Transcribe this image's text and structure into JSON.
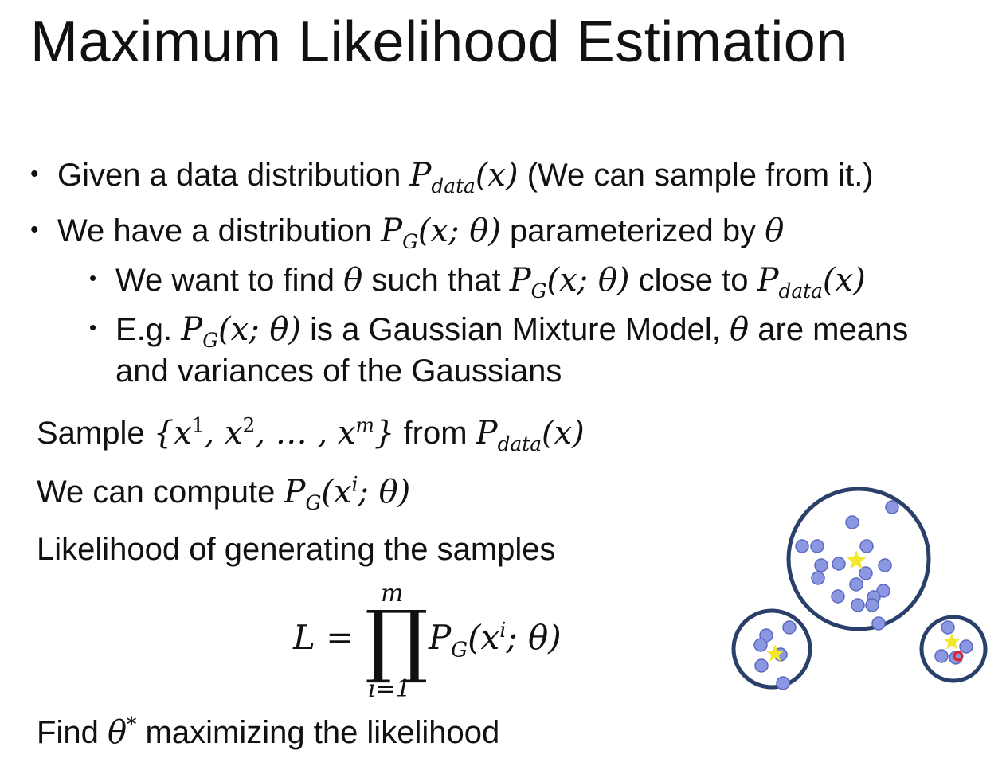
{
  "title": "Maximum Likelihood Estimation",
  "bullets": {
    "b1_text": "Given a data distribution ",
    "b1_pdata": "P",
    "b1_sub": "data",
    "b1_arg": "(x)",
    "b1_note": " (We can sample from it.)",
    "b2_text": "We have a distribution ",
    "b2_pg": "P",
    "b2_sub": "G",
    "b2_arg": "(x; θ)",
    "b2_tail": " parameterized by ",
    "b2_theta": "θ",
    "s1_text": "We want to find ",
    "s1_theta": "θ",
    "s1_mid": " such that ",
    "s1_pg": "P",
    "s1_sub": "G",
    "s1_arg": "(x; θ)",
    "s1_close": " close to ",
    "s1_pdata": "P",
    "s1_sub2": "data",
    "s1_arg2": "(x)",
    "s2_text": "E.g. ",
    "s2_pg": "P",
    "s2_sub": "G",
    "s2_arg": "(x; θ)",
    "s2_mid": " is a Gaussian Mixture Model, ",
    "s2_theta": "θ",
    "s2_tail": " are means",
    "s2_line2": "and variances of the Gaussians"
  },
  "steps": {
    "sample_text": "Sample ",
    "sample_set_open": "{x",
    "sample_sup1": "1",
    "sample_comma1": ", x",
    "sample_sup2": "2",
    "sample_dots": ", … , x",
    "sample_supm": "m",
    "sample_set_close": "}",
    "sample_from": " from ",
    "sample_p": "P",
    "sample_sub": "data",
    "sample_arg": "(x)",
    "compute_text": "We can compute ",
    "compute_p": "P",
    "compute_sub": "G",
    "compute_open": "(x",
    "compute_sup": "i",
    "compute_close": "; θ)",
    "likelihood_text": "Likelihood of generating the samples",
    "find_text": "Find ",
    "find_theta": "θ",
    "find_sup": "*",
    "find_tail": " maximizing the likelihood"
  },
  "equation": {
    "lhs": "L =",
    "prod_top": "m",
    "prod_symbol": "∏",
    "prod_bottom": "i=1",
    "rhs_p": "P",
    "rhs_sub": "G",
    "rhs_open": "(x",
    "rhs_sup": "i",
    "rhs_close": "; θ)"
  },
  "colors": {
    "circle_stroke": "#2b3f6b",
    "dot_fill": "#8b97e0",
    "dot_stroke": "#5b69c0",
    "star": "#f2e72a",
    "red_dot": "#e0202a"
  }
}
